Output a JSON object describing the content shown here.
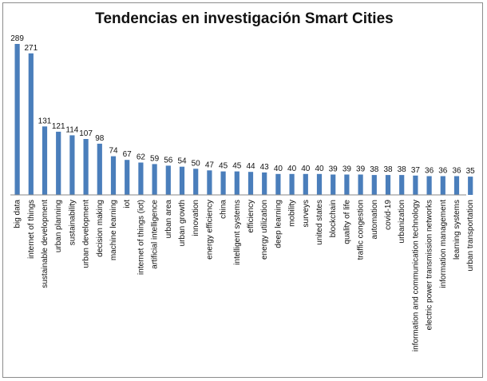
{
  "chart_data": {
    "type": "bar",
    "title": "Tendencias en investigación Smart Cities",
    "xlabel": "",
    "ylabel": "",
    "ylim": [
      0,
      300
    ],
    "grid": false,
    "legend": "none",
    "bar_color": "#4a7ebb",
    "categories": [
      "big data",
      "internet of things",
      "sustainable development",
      "urban planning",
      "sustainability",
      "urban development",
      "decision making",
      "machine learning",
      "iot",
      "internet of things (iot)",
      "artificial intelligence",
      "urban area",
      "urban growth",
      "innovation",
      "energy efficiency",
      "china",
      "intelligent systems",
      "efficiency",
      "energy utilization",
      "deep learning",
      "mobility",
      "surveys",
      "united states",
      "blockchain",
      "quality of life",
      "traffic congestion",
      "automation",
      "covid-19",
      "urbanization",
      "information and communication technology",
      "electric power transmission networks",
      "information management",
      "learning systems",
      "urban transportation"
    ],
    "values": [
      289,
      271,
      131,
      121,
      114,
      107,
      98,
      74,
      67,
      62,
      59,
      56,
      54,
      50,
      47,
      45,
      45,
      44,
      43,
      40,
      40,
      40,
      40,
      39,
      39,
      39,
      38,
      38,
      38,
      37,
      36,
      36,
      36,
      35
    ]
  }
}
